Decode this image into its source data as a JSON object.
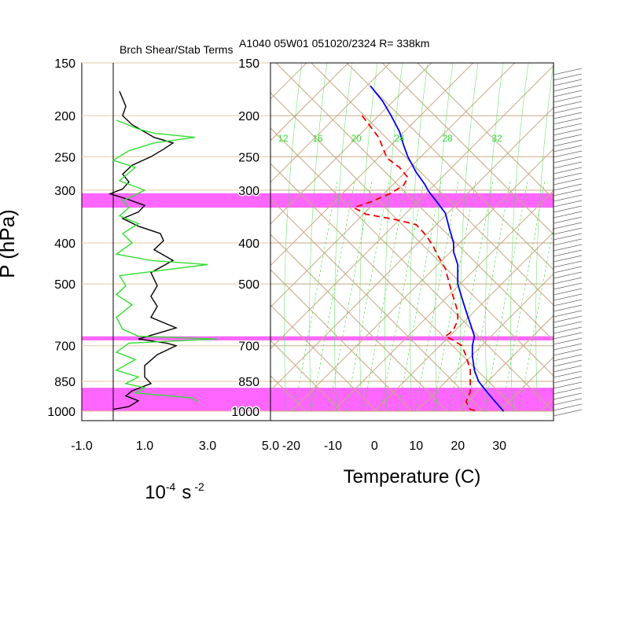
{
  "chart_data": [
    {
      "type": "line",
      "title": "Brch Shear/Stab Terms",
      "xlabel_base": "10",
      "xlabel_exp": "-4",
      "xlabel_unit": "s",
      "xlabel_unit_exp": "-2",
      "ylabel": "P (hPa)",
      "xlim": [
        -1.0,
        5.0
      ],
      "ylim": [
        1000,
        150
      ],
      "y_scale": "log",
      "x_tick_labels": [
        "-1.0",
        "1.0",
        "3.0",
        "5.0"
      ],
      "x_ticks": [
        -1.0,
        1.0,
        3.0,
        5.0
      ],
      "y_tick_labels": [
        "150",
        "200",
        "250",
        "300",
        "400",
        "500",
        "700",
        "850",
        "1000"
      ],
      "y_ticks": [
        150,
        200,
        250,
        300,
        400,
        500,
        700,
        850,
        1000
      ],
      "colors": {
        "black_series": "#000000",
        "green_series": "#33dd33",
        "band": "#ff66ff"
      },
      "series": [
        {
          "color": "black",
          "points": [
            [
              0.2,
              175
            ],
            [
              0.4,
              190
            ],
            [
              0.3,
              200
            ],
            [
              0.6,
              210
            ],
            [
              1.3,
              225
            ],
            [
              1.9,
              232
            ],
            [
              1.6,
              240
            ],
            [
              1.2,
              250
            ],
            [
              0.6,
              262
            ],
            [
              0.3,
              275
            ],
            [
              0.5,
              287
            ],
            [
              0.3,
              298
            ],
            [
              -0.1,
              306
            ],
            [
              0.5,
              316
            ],
            [
              1.0,
              326
            ],
            [
              0.8,
              338
            ],
            [
              0.3,
              350
            ],
            [
              0.8,
              365
            ],
            [
              1.5,
              380
            ],
            [
              1.6,
              395
            ],
            [
              1.3,
              415
            ],
            [
              1.9,
              440
            ],
            [
              1.2,
              470
            ],
            [
              1.4,
              505
            ],
            [
              1.2,
              535
            ],
            [
              1.4,
              565
            ],
            [
              1.2,
              600
            ],
            [
              2.0,
              635
            ],
            [
              1.1,
              665
            ],
            [
              0.8,
              675
            ],
            [
              1.7,
              690
            ],
            [
              2.0,
              700
            ],
            [
              1.4,
              735
            ],
            [
              1.0,
              780
            ],
            [
              1.0,
              830
            ],
            [
              1.2,
              860
            ],
            [
              0.6,
              895
            ],
            [
              0.4,
              920
            ],
            [
              0.8,
              945
            ],
            [
              0.5,
              975
            ],
            [
              0.0,
              990
            ]
          ]
        },
        {
          "color": "green",
          "points": [
            [
              0.1,
              205
            ],
            [
              0.8,
              215
            ],
            [
              1.3,
              220
            ],
            [
              2.6,
              225
            ],
            [
              1.3,
              232
            ],
            [
              0.5,
              242
            ],
            [
              0.0,
              255
            ],
            [
              0.7,
              265
            ],
            [
              0.2,
              285
            ],
            [
              1.0,
              300
            ],
            [
              0.3,
              318
            ],
            [
              0.5,
              330
            ],
            [
              0.2,
              345
            ],
            [
              0.8,
              360
            ],
            [
              0.3,
              380
            ],
            [
              0.6,
              400
            ],
            [
              0.1,
              425
            ],
            [
              1.2,
              440
            ],
            [
              3.0,
              450
            ],
            [
              0.2,
              478
            ],
            [
              0.4,
              505
            ],
            [
              0.1,
              530
            ],
            [
              0.6,
              560
            ],
            [
              0.1,
              600
            ],
            [
              0.3,
              640
            ],
            [
              0.8,
              665
            ],
            [
              3.3,
              675
            ],
            [
              0.5,
              690
            ],
            [
              0.1,
              725
            ],
            [
              0.7,
              755
            ],
            [
              0.1,
              800
            ],
            [
              0.8,
              830
            ],
            [
              0.4,
              860
            ],
            [
              1.0,
              880
            ],
            [
              0.7,
              905
            ],
            [
              2.5,
              930
            ],
            [
              2.7,
              950
            ]
          ]
        }
      ],
      "bands_hpa": [
        [
          305,
          330
        ],
        [
          665,
          680
        ],
        [
          880,
          1000
        ]
      ]
    },
    {
      "type": "line",
      "title": "A1040 05W01 051020/2324 R= 338km",
      "xlabel": "Temperature (C)",
      "xlim": [
        -25,
        43
      ],
      "ylim": [
        1000,
        150
      ],
      "y_scale": "log",
      "x_tick_labels": [
        "-20",
        "-10",
        "0",
        "10",
        "20",
        "30"
      ],
      "x_ticks": [
        -20,
        -10,
        0,
        10,
        20,
        30
      ],
      "y_tick_labels": [
        "150",
        "200",
        "250",
        "300",
        "400",
        "500",
        "700",
        "850",
        "1000"
      ],
      "y_ticks": [
        150,
        200,
        250,
        300,
        400,
        500,
        700,
        850,
        1000
      ],
      "mixing_ratio_labels": [
        "12",
        "16",
        "20",
        "24",
        "28",
        "32"
      ],
      "colors": {
        "temperature": "#0000ee",
        "dewpoint": "#ee0000",
        "grid": "#c8a882",
        "moist": "#33dd33",
        "band": "#ff66ff"
      },
      "series": [
        {
          "color": "blue",
          "style": "solid",
          "points": [
            [
              -1,
              170
            ],
            [
              2,
              185
            ],
            [
              4,
              200
            ],
            [
              6,
              218
            ],
            [
              7,
              235
            ],
            [
              8,
              250
            ],
            [
              10,
              272
            ],
            [
              12,
              290
            ],
            [
              13,
              302
            ],
            [
              15,
              320
            ],
            [
              17,
              340
            ],
            [
              18,
              370
            ],
            [
              19,
              400
            ],
            [
              19,
              420
            ],
            [
              20,
              450
            ],
            [
              20,
              500
            ],
            [
              21,
              540
            ],
            [
              22,
              580
            ],
            [
              23,
              620
            ],
            [
              24,
              665
            ],
            [
              23.5,
              700
            ],
            [
              23.5,
              740
            ],
            [
              24,
              800
            ],
            [
              25,
              850
            ],
            [
              27,
              900
            ],
            [
              29,
              950
            ],
            [
              31,
              1000
            ]
          ]
        },
        {
          "color": "red",
          "style": "dashed",
          "points": [
            [
              -3,
              200
            ],
            [
              -1,
              212
            ],
            [
              1,
              225
            ],
            [
              2,
              238
            ],
            [
              3,
              252
            ],
            [
              6,
              265
            ],
            [
              8,
              280
            ],
            [
              7,
              292
            ],
            [
              4,
              305
            ],
            [
              -1,
              320
            ],
            [
              -5,
              330
            ],
            [
              -2,
              342
            ],
            [
              5,
              352
            ],
            [
              10,
              362
            ],
            [
              12,
              380
            ],
            [
              14,
              405
            ],
            [
              15,
              425
            ],
            [
              17,
              460
            ],
            [
              18,
              500
            ],
            [
              19,
              540
            ],
            [
              20,
              580
            ],
            [
              20,
              610
            ],
            [
              19,
              640
            ],
            [
              18,
              655
            ],
            [
              17,
              665
            ],
            [
              19,
              680
            ],
            [
              21,
              700
            ],
            [
              22,
              740
            ],
            [
              23,
              800
            ],
            [
              23,
              850
            ],
            [
              23,
              900
            ],
            [
              22,
              950
            ],
            [
              23,
              990
            ],
            [
              25,
              1000
            ]
          ]
        }
      ],
      "bands_hpa": [
        [
          305,
          330
        ],
        [
          665,
          680
        ],
        [
          880,
          1000
        ]
      ]
    }
  ]
}
